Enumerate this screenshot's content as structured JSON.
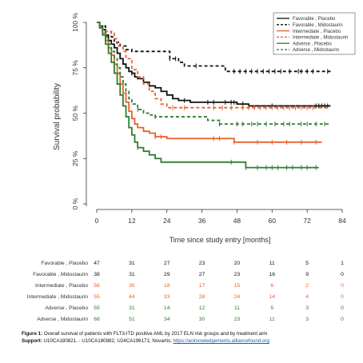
{
  "chart_data": {
    "type": "line",
    "subtype": "kaplan-meier",
    "ylabel": "Survival probability",
    "xlabel": "Time since study entry [months]",
    "ylim": [
      0,
      1
    ],
    "xlim": [
      0,
      84
    ],
    "x_ticks": [
      0,
      12,
      24,
      36,
      48,
      60,
      72,
      84
    ],
    "y_ticks": [
      "0 %",
      "25 %",
      "50 %",
      "75 %",
      "100 %"
    ],
    "y_tick_values": [
      0,
      0.25,
      0.5,
      0.75,
      1.0
    ],
    "legend_position": "top-right",
    "series": [
      {
        "name": "Favorable , Placebo",
        "color": "#111111",
        "dash": "solid",
        "points": [
          [
            0,
            1.0
          ],
          [
            1,
            0.98
          ],
          [
            2,
            0.96
          ],
          [
            3,
            0.93
          ],
          [
            4,
            0.9
          ],
          [
            5,
            0.88
          ],
          [
            6,
            0.86
          ],
          [
            7,
            0.83
          ],
          [
            8,
            0.8
          ],
          [
            9,
            0.77
          ],
          [
            10,
            0.75
          ],
          [
            11,
            0.73
          ],
          [
            12,
            0.72
          ],
          [
            13,
            0.7
          ],
          [
            14,
            0.69
          ],
          [
            16,
            0.67
          ],
          [
            18,
            0.65
          ],
          [
            20,
            0.64
          ],
          [
            22,
            0.62
          ],
          [
            24,
            0.6
          ],
          [
            26,
            0.58
          ],
          [
            28,
            0.57
          ],
          [
            32,
            0.56
          ],
          [
            36,
            0.56
          ],
          [
            48,
            0.55
          ],
          [
            52,
            0.54
          ],
          [
            80,
            0.54
          ]
        ],
        "censors": [
          12,
          30,
          38,
          40,
          44,
          46,
          47,
          50,
          60,
          75,
          76,
          77,
          78,
          79
        ]
      },
      {
        "name": "Favorable , Midostaurin",
        "color": "#111111",
        "dash": "dashed",
        "points": [
          [
            0,
            1.0
          ],
          [
            1,
            0.98
          ],
          [
            3,
            0.95
          ],
          [
            5,
            0.92
          ],
          [
            6,
            0.89
          ],
          [
            8,
            0.87
          ],
          [
            10,
            0.85
          ],
          [
            12,
            0.84
          ],
          [
            24,
            0.84
          ],
          [
            25,
            0.8
          ],
          [
            28,
            0.78
          ],
          [
            30,
            0.76
          ],
          [
            38,
            0.76
          ],
          [
            44,
            0.73
          ],
          [
            80,
            0.73
          ]
        ],
        "censors": [
          25,
          27,
          34,
          47,
          49,
          51,
          53,
          55,
          57,
          59,
          61,
          63,
          66,
          69,
          70,
          72,
          74,
          79
        ]
      },
      {
        "name": "Intermediate , Placebo",
        "color": "#e8602c",
        "dash": "solid",
        "points": [
          [
            0,
            1.0
          ],
          [
            1,
            0.97
          ],
          [
            2,
            0.94
          ],
          [
            3,
            0.9
          ],
          [
            4,
            0.86
          ],
          [
            5,
            0.82
          ],
          [
            6,
            0.77
          ],
          [
            7,
            0.72
          ],
          [
            8,
            0.66
          ],
          [
            9,
            0.61
          ],
          [
            10,
            0.56
          ],
          [
            11,
            0.51
          ],
          [
            12,
            0.47
          ],
          [
            13,
            0.44
          ],
          [
            14,
            0.42
          ],
          [
            16,
            0.4
          ],
          [
            18,
            0.39
          ],
          [
            20,
            0.37
          ],
          [
            24,
            0.36
          ],
          [
            40,
            0.36
          ],
          [
            47,
            0.34
          ],
          [
            77,
            0.34
          ]
        ],
        "censors": [
          20,
          22,
          40,
          42,
          47,
          55,
          60,
          65,
          70,
          75
        ]
      },
      {
        "name": "Intermediate , Midostaurin",
        "color": "#e8602c",
        "dash": "dashed",
        "points": [
          [
            0,
            1.0
          ],
          [
            1,
            0.98
          ],
          [
            2,
            0.96
          ],
          [
            3,
            0.95
          ],
          [
            5,
            0.94
          ],
          [
            6,
            0.91
          ],
          [
            7,
            0.87
          ],
          [
            9,
            0.84
          ],
          [
            10,
            0.8
          ],
          [
            12,
            0.74
          ],
          [
            14,
            0.7
          ],
          [
            16,
            0.66
          ],
          [
            18,
            0.62
          ],
          [
            20,
            0.58
          ],
          [
            22,
            0.55
          ],
          [
            24,
            0.53
          ],
          [
            34,
            0.53
          ],
          [
            80,
            0.53
          ]
        ],
        "censors": [
          26,
          30,
          40,
          43,
          46,
          50,
          52,
          54,
          56,
          58,
          60,
          62,
          64,
          66,
          68,
          70,
          72,
          74
        ]
      },
      {
        "name": "Adverse , Placebo",
        "color": "#2e7d32",
        "dash": "solid",
        "points": [
          [
            0,
            1.0
          ],
          [
            1,
            0.97
          ],
          [
            2,
            0.93
          ],
          [
            3,
            0.88
          ],
          [
            4,
            0.83
          ],
          [
            5,
            0.78
          ],
          [
            6,
            0.72
          ],
          [
            7,
            0.66
          ],
          [
            8,
            0.6
          ],
          [
            9,
            0.54
          ],
          [
            10,
            0.48
          ],
          [
            11,
            0.42
          ],
          [
            12,
            0.38
          ],
          [
            13,
            0.34
          ],
          [
            14,
            0.31
          ],
          [
            16,
            0.29
          ],
          [
            18,
            0.27
          ],
          [
            20,
            0.25
          ],
          [
            22,
            0.23
          ],
          [
            26,
            0.23
          ],
          [
            50,
            0.23
          ],
          [
            51,
            0.2
          ],
          [
            76,
            0.2
          ]
        ],
        "censors": [
          14,
          46,
          51,
          55,
          58,
          60,
          62,
          65,
          67,
          70,
          72,
          75
        ]
      },
      {
        "name": "Adverse , Midostaurin",
        "color": "#2e7d32",
        "dash": "dashed",
        "points": [
          [
            0,
            1.0
          ],
          [
            1,
            0.98
          ],
          [
            2,
            0.95
          ],
          [
            3,
            0.92
          ],
          [
            4,
            0.88
          ],
          [
            5,
            0.84
          ],
          [
            6,
            0.8
          ],
          [
            7,
            0.75
          ],
          [
            8,
            0.7
          ],
          [
            9,
            0.66
          ],
          [
            10,
            0.62
          ],
          [
            11,
            0.58
          ],
          [
            12,
            0.55
          ],
          [
            14,
            0.52
          ],
          [
            16,
            0.5
          ],
          [
            18,
            0.49
          ],
          [
            20,
            0.48
          ],
          [
            24,
            0.48
          ],
          [
            36,
            0.48
          ],
          [
            38,
            0.46
          ],
          [
            42,
            0.44
          ],
          [
            80,
            0.44
          ]
        ],
        "censors": [
          14,
          20,
          42,
          48,
          50,
          53,
          55,
          58,
          61,
          64,
          66,
          70,
          72,
          75,
          78
        ]
      }
    ],
    "risk_table": {
      "rows": [
        {
          "label": "Favorable , Placebo",
          "color": "#111111",
          "counts": [
            "47",
            "31",
            "27",
            "23",
            "20",
            "11",
            "5",
            "1"
          ]
        },
        {
          "label": "Favorable , Midostaurin",
          "color": "#111111",
          "counts": [
            "38",
            "31",
            "29",
            "27",
            "23",
            "16",
            "9",
            "0"
          ]
        },
        {
          "label": "Intermediate , Placebo",
          "color": "#e8602c",
          "counts": [
            "56",
            "30",
            "18",
            "17",
            "15",
            "6",
            "2",
            "0"
          ]
        },
        {
          "label": "Intermediate , Midostaurin",
          "color": "#e8602c",
          "counts": [
            "55",
            "44",
            "33",
            "28",
            "24",
            "14",
            "4",
            "0"
          ]
        },
        {
          "label": "Adverse , Placebo",
          "color": "#2e7d32",
          "counts": [
            "55",
            "31",
            "14",
            "12",
            "11",
            "5",
            "3",
            "0"
          ]
        },
        {
          "label": "Adverse , Midostaurin",
          "color": "#2e7d32",
          "counts": [
            "68",
            "51",
            "34",
            "30",
            "23",
            "11",
            "3",
            "0"
          ]
        }
      ]
    }
  },
  "caption": {
    "figure_label": "Figure 1:",
    "figure_text": " Overall survival of patients with FLT3-ITD positive AML by 2017 ELN risk groups and by treatment arm",
    "support_label": "Support:",
    "support_text": " U10CA180821, - U10CA180882, U24CA196171; Novartis; ",
    "support_link": "https://acknowledgements.alliancefound.org"
  }
}
